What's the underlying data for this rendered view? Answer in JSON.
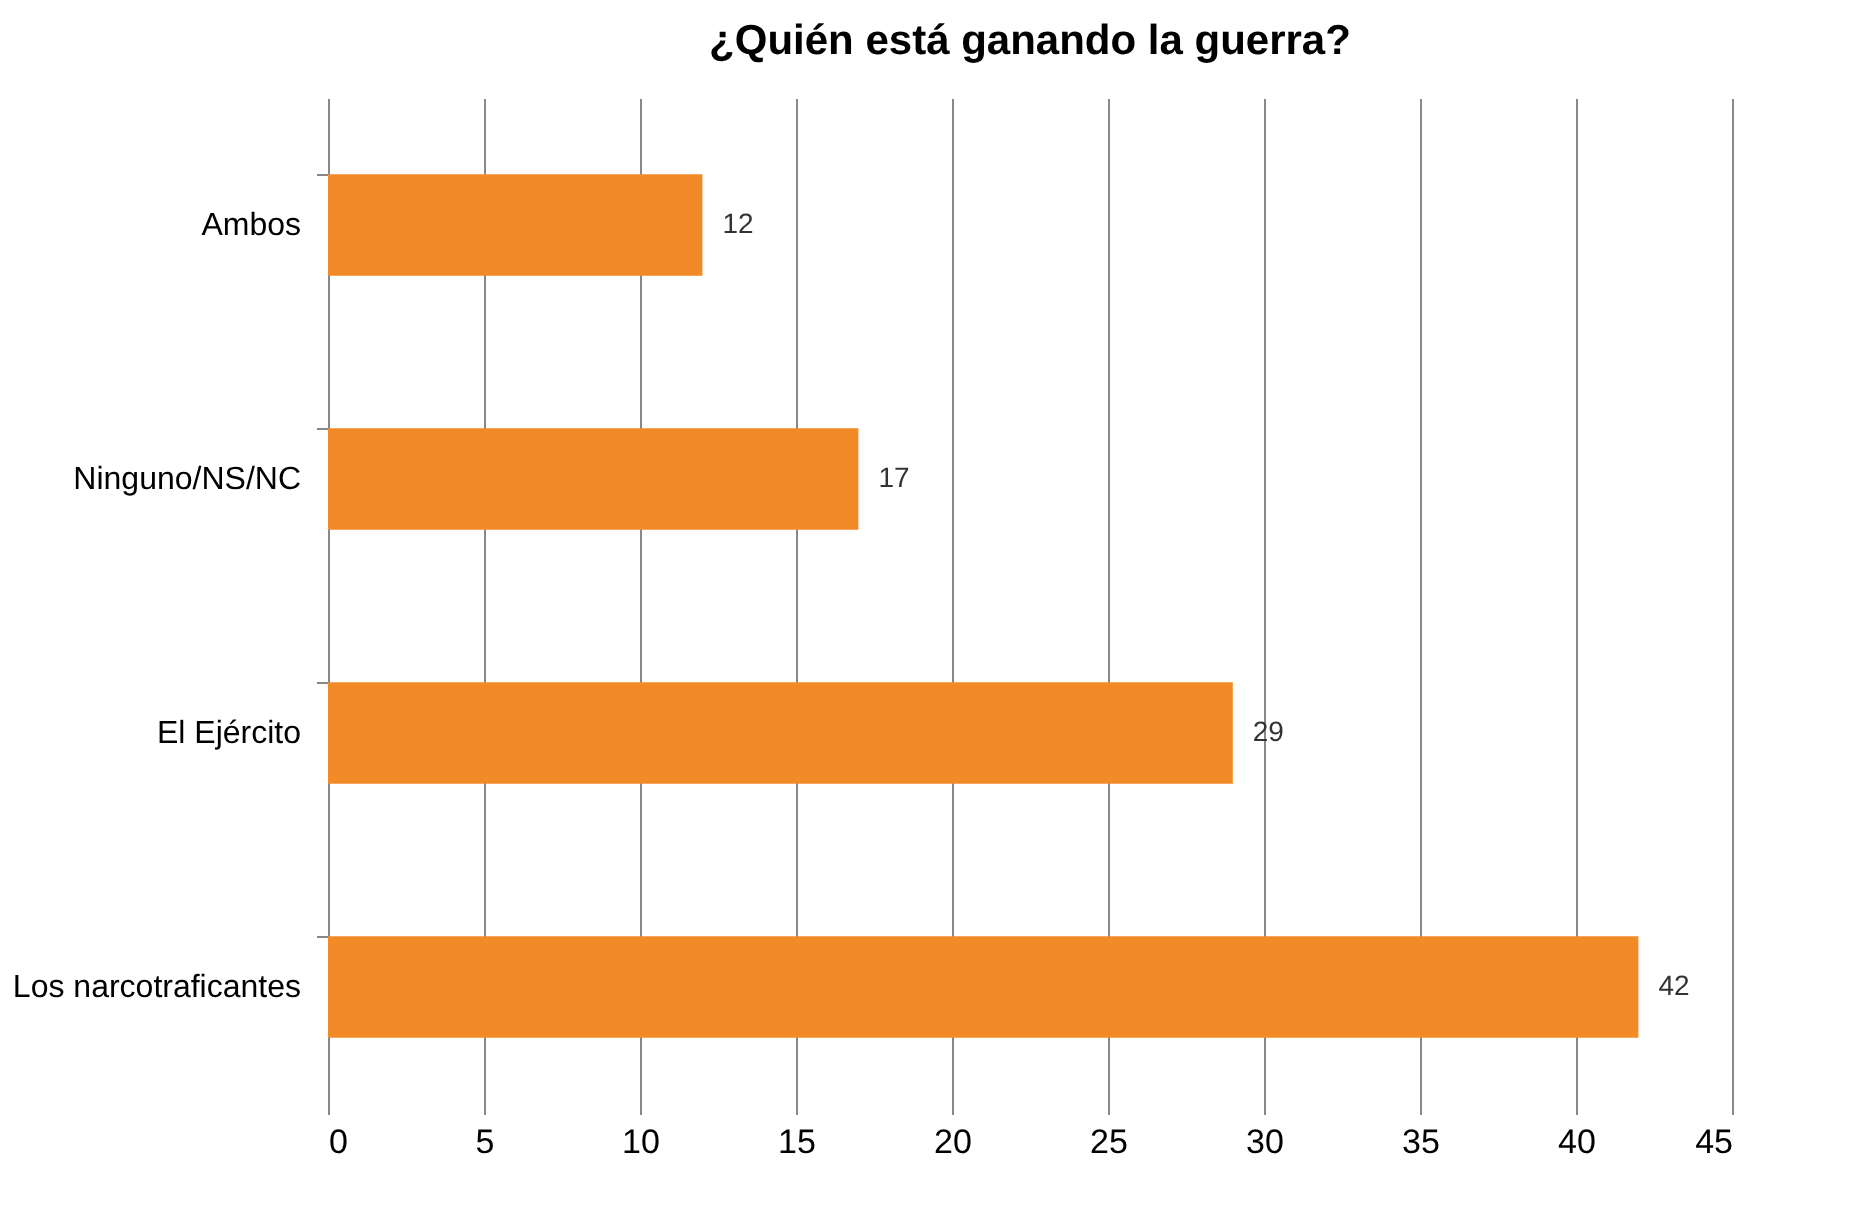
{
  "chart_data": {
    "type": "bar",
    "orientation": "horizontal",
    "title": "¿Quién está  ganando la guerra?",
    "categories": [
      "Ambos",
      "Ninguno/NS/NC",
      "El Ejército",
      "Los narcotraficantes"
    ],
    "values": [
      12,
      17,
      29,
      42
    ],
    "color": "#f28a28",
    "xlim": [
      0,
      45
    ],
    "xticks": [
      0,
      5,
      10,
      15,
      20,
      25,
      30,
      35,
      40,
      45
    ],
    "grid": "x",
    "data_labels": true
  }
}
